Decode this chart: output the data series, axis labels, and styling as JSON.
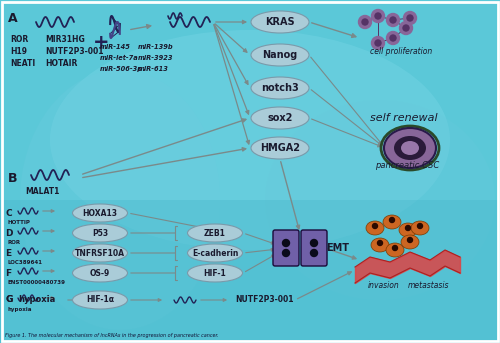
{
  "bg_color": "#5bc8d8",
  "title": "Figure 1. The molecular mechanism of lncRNAs in the progression of pancreatic cancer.",
  "lncrna_list_left": [
    "ROR",
    "H19",
    "NEATI"
  ],
  "lncrna_list_right": [
    "MIR31HG",
    "NUTF2P3-001",
    "HOTAIR"
  ],
  "mir_list_left": [
    "miR-145",
    "miR-let-7a",
    "miR-506-3p"
  ],
  "mir_list_right": [
    "miR-139b",
    "miR-3923",
    "miR-613"
  ],
  "target_genes_top": [
    "KRAS",
    "Nanog",
    "notch3",
    "sox2",
    "HMGA2"
  ],
  "outcomes_top_right": [
    "cell proliferation",
    "self renewal",
    "pancreatic CSC"
  ],
  "section_B_label": "MALAT1",
  "section_C_label": "HOTTIP",
  "section_D_label": "ROR",
  "section_E_label": "LOC389641",
  "section_F_label": "ENST00000480739",
  "section_G_label": "hypoxia",
  "intermediate_nodes_left": [
    "HOXA13",
    "P53",
    "TNFRSF10A",
    "OS-9"
  ],
  "intermediate_nodes_right": [
    "ZEB1",
    "E-cadherin",
    "HIF-1"
  ],
  "emt_label": "EMT",
  "outcomes_bottom": [
    "invasion",
    "metastasis"
  ],
  "hypoxia_end": "NUTF2P3-001",
  "ellipse_color_light": "#aaccd8",
  "ellipse_stroke": "#7a9aaa",
  "emt_box_color": "#7060a8",
  "arrow_color": "#7a8a8a",
  "text_dark": "#1a1a2e",
  "plus_color": "#222255",
  "wave_color": "#222255",
  "cell_prolif_color": "#886699",
  "invasion_color": "#cc6622",
  "csc_color": "#7755aa"
}
